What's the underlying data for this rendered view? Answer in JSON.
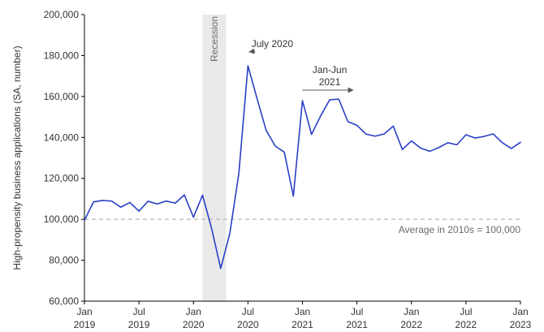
{
  "chart_data": {
    "type": "line",
    "ylabel": "High-propensity business applications (SA, number)",
    "ylim": [
      60000,
      200000
    ],
    "yticks": [
      60000,
      80000,
      100000,
      120000,
      140000,
      160000,
      180000,
      200000
    ],
    "ytick_labels": [
      "60,000",
      "80,000",
      "100,000",
      "120,000",
      "140,000",
      "160,000",
      "180,000",
      "200,000"
    ],
    "xticks": [
      {
        "month": "Jan",
        "year": "2019",
        "index": 0
      },
      {
        "month": "Jul",
        "year": "2019",
        "index": 6
      },
      {
        "month": "Jan",
        "year": "2020",
        "index": 12
      },
      {
        "month": "Jul",
        "year": "2020",
        "index": 18
      },
      {
        "month": "Jan",
        "year": "2021",
        "index": 24
      },
      {
        "month": "Jul",
        "year": "2021",
        "index": 30
      },
      {
        "month": "Jan",
        "year": "2022",
        "index": 36
      },
      {
        "month": "Jul",
        "year": "2022",
        "index": 42
      },
      {
        "month": "Jan",
        "year": "2023",
        "index": 48
      }
    ],
    "x": [
      "2019-01",
      "2019-02",
      "2019-03",
      "2019-04",
      "2019-05",
      "2019-06",
      "2019-07",
      "2019-08",
      "2019-09",
      "2019-10",
      "2019-11",
      "2019-12",
      "2020-01",
      "2020-02",
      "2020-03",
      "2020-04",
      "2020-05",
      "2020-06",
      "2020-07",
      "2020-08",
      "2020-09",
      "2020-10",
      "2020-11",
      "2020-12",
      "2021-01",
      "2021-02",
      "2021-03",
      "2021-04",
      "2021-05",
      "2021-06",
      "2021-07",
      "2021-08",
      "2021-09",
      "2021-10",
      "2021-11",
      "2021-12",
      "2022-01",
      "2022-02",
      "2022-03",
      "2022-04",
      "2022-05",
      "2022-06",
      "2022-07",
      "2022-08",
      "2022-09",
      "2022-10",
      "2022-11",
      "2022-12",
      "2023-01"
    ],
    "series": [
      {
        "values": [
          99500,
          108500,
          109200,
          108900,
          105900,
          108200,
          104000,
          108800,
          107500,
          108900,
          107900,
          111900,
          101000,
          111800,
          95500,
          76000,
          93000,
          122500,
          175000,
          159000,
          143500,
          135800,
          132800,
          111300,
          158000,
          141500,
          150500,
          158400,
          158700,
          147700,
          145900,
          141600,
          140600,
          141700,
          145500,
          134100,
          138300,
          134800,
          133200,
          135000,
          137400,
          136400,
          141300,
          139700,
          140500,
          141700,
          137400,
          134600,
          137600
        ],
        "color": "#2a3fc6"
      }
    ],
    "reference_line": {
      "value": 100000,
      "label": "Average in 2010s = 100,000",
      "color": "#b5b5b5"
    },
    "shaded_region": {
      "label": "Recession",
      "start_index": 13,
      "end_index": 15.6,
      "color": "#e9e9e9"
    },
    "annotations": [
      {
        "text": "July 2020",
        "point_index": 18
      },
      {
        "text_lines": [
          "Jan-Jun",
          "2021"
        ],
        "arrow_start_index": 24,
        "arrow_end_index": 30
      }
    ],
    "grid": false,
    "legend": "none"
  }
}
